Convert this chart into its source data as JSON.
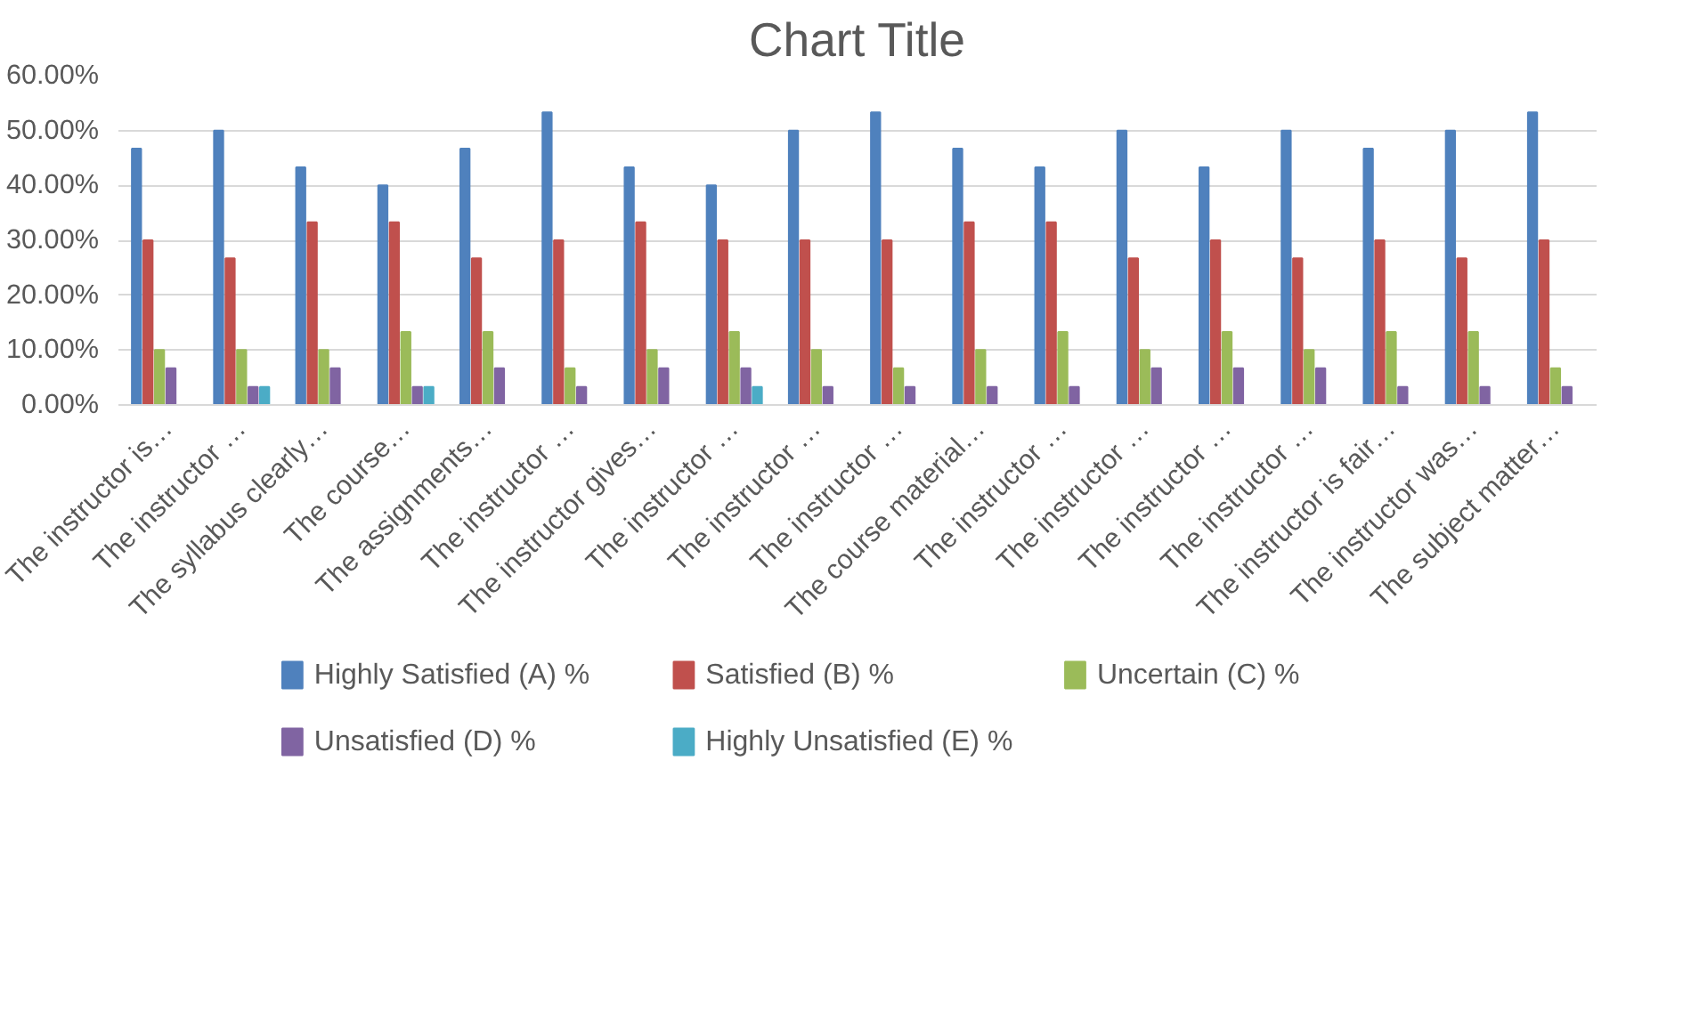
{
  "chart_data": {
    "type": "bar",
    "title": "Chart Title",
    "categories": [
      "The instructor is…",
      "The instructor …",
      "The syllabus clearly…",
      "The course…",
      "The assignments…",
      "The instructor …",
      "The instructor gives…",
      "The instructor …",
      "The instructor …",
      "The instructor …",
      "The course material…",
      "The instructor …",
      "The instructor …",
      "The instructor …",
      "The instructor …",
      "The instructor is fair…",
      "The instructor was…",
      "The subject matter…"
    ],
    "series": [
      {
        "name": "Highly Satisfied (A) %",
        "color": "#4f81bd",
        "values": [
          46.7,
          50,
          43.3,
          40,
          46.7,
          53.3,
          43.3,
          40,
          50,
          53.3,
          46.7,
          43.3,
          50,
          43.3,
          50,
          46.7,
          50,
          53.3
        ]
      },
      {
        "name": "Satisfied (B) %",
        "color": "#c0504d",
        "values": [
          30,
          26.7,
          33.3,
          33.3,
          26.7,
          30,
          33.3,
          30,
          30,
          30,
          33.3,
          33.3,
          26.7,
          30,
          26.7,
          30,
          26.7,
          30
        ]
      },
      {
        "name": "Uncertain (C) %",
        "color": "#9bbb59",
        "values": [
          10,
          10,
          10,
          13.3,
          13.3,
          6.7,
          10,
          13.3,
          10,
          6.7,
          10,
          13.3,
          10,
          13.3,
          10,
          13.3,
          13.3,
          6.7
        ]
      },
      {
        "name": "Unsatisfied (D) %",
        "color": "#8064a2",
        "values": [
          6.7,
          3.3,
          6.7,
          3.3,
          6.7,
          3.3,
          6.7,
          6.7,
          3.3,
          3.3,
          3.3,
          3.3,
          6.7,
          6.7,
          6.7,
          3.3,
          3.3,
          3.3
        ]
      },
      {
        "name": "Highly Unsatisfied (E) %",
        "color": "#4bacc6",
        "values": [
          null,
          3.3,
          null,
          3.3,
          null,
          null,
          null,
          3.3,
          null,
          null,
          null,
          null,
          null,
          null,
          null,
          null,
          null,
          null
        ]
      }
    ],
    "ylim": [
      0,
      60
    ],
    "yticks": [
      {
        "value": 0,
        "label": "0.00%"
      },
      {
        "value": 10,
        "label": "10.00%"
      },
      {
        "value": 20,
        "label": "20.00%"
      },
      {
        "value": 30,
        "label": "30.00%"
      },
      {
        "value": 40,
        "label": "40.00%"
      },
      {
        "value": 50,
        "label": "50.00%"
      },
      {
        "value": 60,
        "label": "60.00%"
      }
    ],
    "grid": "y",
    "legend": "bottom"
  }
}
